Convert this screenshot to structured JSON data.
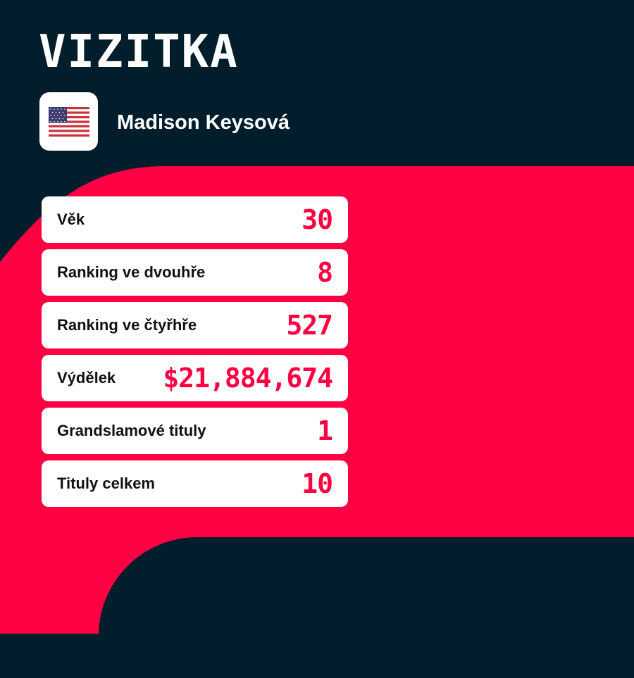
{
  "title": "VIZITKA",
  "player": {
    "name": "Madison Keysová",
    "flag_icon": "us-flag-icon"
  },
  "stats": [
    {
      "label": "Věk",
      "value": "30"
    },
    {
      "label": "Ranking ve dvouhře",
      "value": "8"
    },
    {
      "label": "Ranking ve čtyřhře",
      "value": "527"
    },
    {
      "label": "Výdělek",
      "value": "$21,884,674"
    },
    {
      "label": "Grandslamové tituly",
      "value": "1"
    },
    {
      "label": "Tituly celkem",
      "value": "10"
    }
  ],
  "colors": {
    "background": "#021d2b",
    "accent": "#ff0042",
    "card": "#ffffff"
  }
}
